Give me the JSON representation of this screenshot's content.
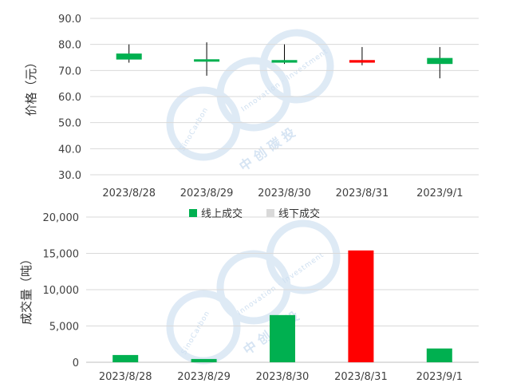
{
  "chart_data": [
    {
      "type": "candlestick",
      "ylabel": "价格（元）",
      "ylim": [
        30,
        90
      ],
      "yticks": [
        "30.0",
        "40.0",
        "50.0",
        "60.0",
        "70.0",
        "80.0",
        "90.0"
      ],
      "categories": [
        "2023/8/28",
        "2023/8/29",
        "2023/8/30",
        "2023/8/31",
        "2023/9/1"
      ],
      "series": [
        {
          "open": [
            76.5,
            74.3,
            74.0,
            73.0,
            74.8
          ],
          "close": [
            74.2,
            74.0,
            73.0,
            74.0,
            72.5
          ],
          "high": [
            80.0,
            80.8,
            80.0,
            79.0,
            79.0
          ],
          "low": [
            73.0,
            68.0,
            72.5,
            72.0,
            67.0
          ],
          "colors": [
            "#00b050",
            "#00b050",
            "#00b050",
            "#ff0000",
            "#00b050"
          ]
        }
      ],
      "grid": true
    },
    {
      "type": "bar",
      "ylabel": "成交量（吨）",
      "ylim": [
        0,
        20000
      ],
      "yticks": [
        "0",
        "5,000",
        "10,000",
        "15,000",
        "20,000"
      ],
      "categories": [
        "2023/8/28",
        "2023/8/29",
        "2023/8/30",
        "2023/8/31",
        "2023/9/1"
      ],
      "series": [
        {
          "values": [
            1000,
            450,
            6500,
            15400,
            1900
          ],
          "colors": [
            "#00b050",
            "#00b050",
            "#00b050",
            "#ff0000",
            "#00b050"
          ]
        }
      ],
      "legend": {
        "placement": "top-center",
        "items": [
          {
            "label": "线上成交",
            "color": "#00b050"
          },
          {
            "label": "线下成交",
            "color": "#d9d9d9"
          }
        ]
      },
      "grid": true
    }
  ],
  "watermark": {
    "text_en_1": "SinoCarbon",
    "text_en_2": "Innovation · Investment",
    "text_cn": "中 创 碳 投"
  }
}
